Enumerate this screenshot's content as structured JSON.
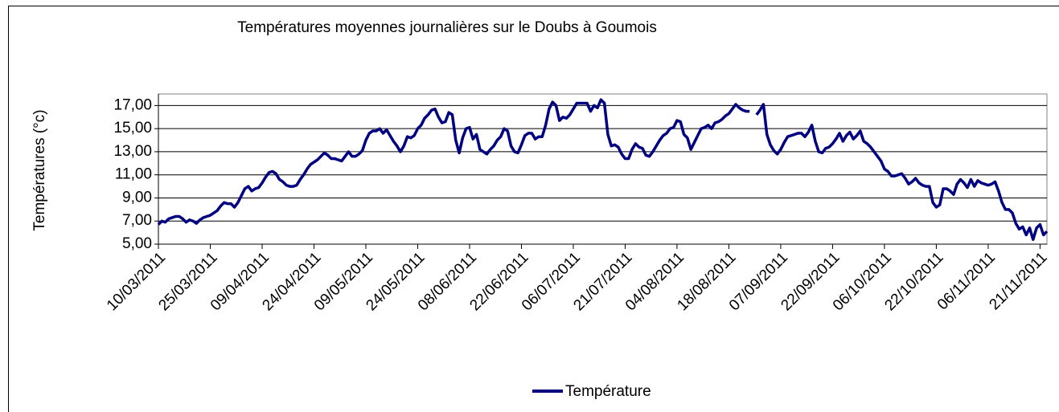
{
  "chart_data": {
    "type": "line",
    "title": "Températures moyennes journalières sur le Doubs à Goumois",
    "y_label": "Températures (°c)",
    "categories": [
      "10/03/2011",
      null,
      null,
      null,
      null,
      null,
      null,
      null,
      null,
      null,
      null,
      null,
      null,
      null,
      null,
      "25/03/2011",
      null,
      null,
      null,
      null,
      null,
      null,
      null,
      null,
      null,
      null,
      null,
      null,
      null,
      null,
      "09/04/2011",
      null,
      null,
      null,
      null,
      null,
      null,
      null,
      null,
      null,
      null,
      null,
      null,
      null,
      null,
      "24/04/2011",
      null,
      null,
      null,
      null,
      null,
      null,
      null,
      null,
      null,
      null,
      null,
      null,
      null,
      null,
      "09/05/2011",
      null,
      null,
      null,
      null,
      null,
      null,
      null,
      null,
      null,
      null,
      null,
      null,
      null,
      null,
      "24/05/2011",
      null,
      null,
      null,
      null,
      null,
      null,
      null,
      null,
      null,
      null,
      null,
      null,
      null,
      null,
      "08/06/2011",
      null,
      null,
      null,
      null,
      null,
      null,
      null,
      null,
      null,
      null,
      null,
      null,
      null,
      null,
      "22/06/2011",
      null,
      null,
      null,
      null,
      null,
      null,
      null,
      null,
      null,
      null,
      null,
      null,
      null,
      null,
      "06/07/2011",
      null,
      null,
      null,
      null,
      null,
      null,
      null,
      null,
      null,
      null,
      null,
      null,
      null,
      null,
      "21/07/2011",
      null,
      null,
      null,
      null,
      null,
      null,
      null,
      null,
      null,
      null,
      null,
      null,
      null,
      null,
      "04/08/2011",
      null,
      null,
      null,
      null,
      null,
      null,
      null,
      null,
      null,
      null,
      null,
      null,
      null,
      null,
      "18/08/2011",
      null,
      null,
      null,
      null,
      null,
      null,
      null,
      null,
      null,
      null,
      null,
      null,
      null,
      null,
      "07/09/2011",
      null,
      null,
      null,
      null,
      null,
      null,
      null,
      null,
      null,
      null,
      null,
      null,
      null,
      null,
      "22/09/2011",
      null,
      null,
      null,
      null,
      null,
      null,
      null,
      null,
      null,
      null,
      null,
      null,
      null,
      null,
      "06/10/2011",
      null,
      null,
      null,
      null,
      null,
      null,
      null,
      null,
      null,
      null,
      null,
      null,
      null,
      null,
      "22/10/2011",
      null,
      null,
      null,
      null,
      null,
      null,
      null,
      null,
      null,
      null,
      null,
      null,
      null,
      null,
      "06/11/2011",
      null,
      null,
      null,
      null,
      null,
      null,
      null,
      null,
      null,
      null,
      null,
      null,
      null,
      null,
      "21/11/2011",
      null,
      null
    ],
    "series": [
      {
        "name": "Température",
        "color": "#000080",
        "values": [
          6.7,
          7.0,
          6.9,
          7.2,
          7.3,
          7.4,
          7.4,
          7.2,
          6.9,
          7.1,
          7.0,
          6.8,
          7.1,
          7.3,
          7.4,
          7.5,
          7.7,
          7.9,
          8.3,
          8.6,
          8.5,
          8.5,
          8.2,
          8.6,
          9.2,
          9.8,
          10.0,
          9.6,
          9.8,
          9.9,
          10.3,
          10.8,
          11.2,
          11.3,
          11.1,
          10.6,
          10.4,
          10.1,
          10.0,
          10.0,
          10.1,
          10.6,
          11.0,
          11.5,
          11.9,
          12.1,
          12.3,
          12.6,
          12.9,
          12.7,
          12.4,
          12.4,
          12.3,
          12.2,
          12.6,
          13.0,
          12.6,
          12.6,
          12.8,
          13.1,
          14.0,
          14.6,
          14.8,
          14.8,
          15.0,
          14.6,
          14.9,
          14.4,
          13.9,
          13.5,
          13.0,
          13.5,
          14.3,
          14.2,
          14.4,
          15.0,
          15.3,
          15.9,
          16.2,
          16.6,
          16.7,
          16.0,
          15.5,
          15.6,
          16.4,
          16.2,
          14.0,
          12.9,
          14.2,
          15.0,
          15.1,
          14.1,
          14.5,
          13.2,
          13.0,
          12.8,
          13.2,
          13.5,
          14.0,
          14.3,
          15.0,
          14.8,
          13.5,
          13.0,
          12.9,
          13.6,
          14.4,
          14.6,
          14.6,
          14.1,
          14.3,
          14.3,
          15.3,
          16.7,
          17.3,
          17.0,
          15.7,
          16.0,
          15.9,
          16.2,
          16.7,
          17.2,
          17.2,
          17.2,
          17.2,
          16.5,
          17.0,
          16.8,
          17.5,
          17.2,
          14.5,
          13.5,
          13.6,
          13.4,
          12.8,
          12.4,
          12.4,
          13.2,
          13.7,
          13.4,
          13.3,
          12.7,
          12.6,
          13.0,
          13.5,
          14.0,
          14.4,
          14.6,
          15.0,
          15.1,
          15.7,
          15.6,
          14.5,
          14.2,
          13.2,
          13.8,
          14.4,
          15.0,
          15.1,
          15.3,
          15.0,
          15.5,
          15.6,
          15.8,
          16.1,
          16.3,
          16.7,
          17.1,
          16.8,
          16.6,
          16.5,
          16.5,
          null,
          16.2,
          16.6,
          17.1,
          14.5,
          13.6,
          13.1,
          12.8,
          13.2,
          13.8,
          14.3,
          14.4,
          14.5,
          14.6,
          14.6,
          14.3,
          14.7,
          15.3,
          13.9,
          13.0,
          12.9,
          13.3,
          13.4,
          13.7,
          14.1,
          14.6,
          13.9,
          14.4,
          14.7,
          14.1,
          14.4,
          14.8,
          13.9,
          13.7,
          13.4,
          13.0,
          12.6,
          12.2,
          11.5,
          11.3,
          10.9,
          10.9,
          11.0,
          11.1,
          10.7,
          10.2,
          10.4,
          10.7,
          10.3,
          10.1,
          10.0,
          10.0,
          8.6,
          8.2,
          8.4,
          9.8,
          9.8,
          9.6,
          9.3,
          10.2,
          10.6,
          10.3,
          9.9,
          10.6,
          10.0,
          10.5,
          10.3,
          10.2,
          10.1,
          10.2,
          10.4,
          9.6,
          8.6,
          8.0,
          8.0,
          7.7,
          6.8,
          6.3,
          6.5,
          5.8,
          6.4,
          5.4,
          6.4,
          6.7,
          5.8,
          6.1
        ]
      }
    ],
    "ylim": [
      5,
      18
    ],
    "yticks": [
      {
        "value": 5,
        "label": "5,00"
      },
      {
        "value": 7,
        "label": "7,00"
      },
      {
        "value": 9,
        "label": "9,00"
      },
      {
        "value": 11,
        "label": "11,00"
      },
      {
        "value": 13,
        "label": "13,00"
      },
      {
        "value": 15,
        "label": "15,00"
      },
      {
        "value": 17,
        "label": "17,00"
      }
    ],
    "grid": true,
    "legend": "bottom"
  }
}
